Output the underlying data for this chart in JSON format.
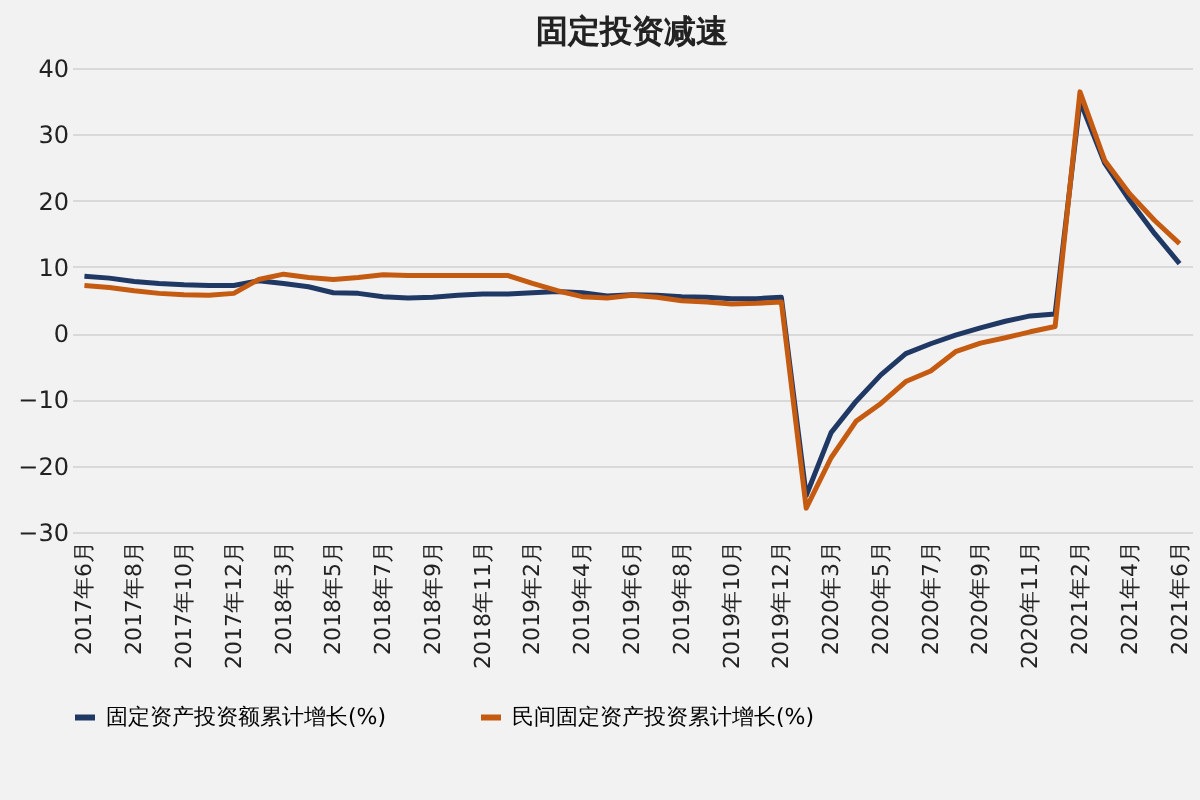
{
  "chart_data": {
    "type": "line",
    "title": "固定投资减速",
    "categories": [
      "2017年6月",
      null,
      "2017年8月",
      null,
      "2017年10月",
      null,
      "2017年12月",
      null,
      "2018年3月",
      null,
      "2018年5月",
      null,
      "2018年7月",
      null,
      "2018年9月",
      null,
      "2018年11月",
      null,
      "2019年2月",
      null,
      "2019年4月",
      null,
      "2019年6月",
      null,
      "2019年8月",
      null,
      "2019年10月",
      null,
      "2019年12月",
      null,
      "2020年3月",
      null,
      "2020年5月",
      null,
      "2020年7月",
      null,
      "2020年9月",
      null,
      "2020年11月",
      null,
      "2021年2月",
      null,
      "2021年4月",
      null,
      "2021年6月"
    ],
    "series": [
      {
        "name": "固定资产投资额累计增长(%)",
        "color": "#203864",
        "values": [
          8.6,
          8.3,
          7.8,
          7.5,
          7.3,
          7.2,
          7.2,
          7.9,
          7.5,
          7.0,
          6.1,
          6.0,
          5.5,
          5.3,
          5.4,
          5.7,
          5.9,
          5.9,
          6.1,
          6.3,
          6.1,
          5.6,
          5.8,
          5.7,
          5.5,
          5.4,
          5.2,
          5.2,
          5.4,
          -24.5,
          -15,
          -10.3,
          -6.3,
          -3.1,
          -1.6,
          -0.3,
          0.8,
          1.8,
          2.6,
          2.9,
          35,
          25.6,
          20,
          15,
          10.5
        ]
      },
      {
        "name": "民间固定资产投资累计增长(%)",
        "color": "#c55a11",
        "values": [
          7.2,
          6.9,
          6.4,
          6.0,
          5.8,
          5.7,
          6.0,
          8.1,
          8.9,
          8.4,
          8.1,
          8.4,
          8.8,
          8.7,
          8.7,
          8.7,
          8.7,
          8.7,
          7.5,
          6.4,
          5.5,
          5.3,
          5.7,
          5.4,
          4.9,
          4.7,
          4.4,
          4.5,
          4.7,
          -26.4,
          -18.8,
          -13.3,
          -10.6,
          -7.3,
          -5.7,
          -2.8,
          -1.5,
          -0.7,
          0.2,
          1.0,
          36.4,
          26,
          21,
          17,
          13.5
        ]
      }
    ],
    "ylim": [
      -30,
      40
    ],
    "yticks": [
      -30,
      -20,
      -10,
      0,
      10,
      20,
      30,
      40
    ],
    "grid": "y",
    "legend": "bottom",
    "marker": "none",
    "line_style": "solid"
  }
}
